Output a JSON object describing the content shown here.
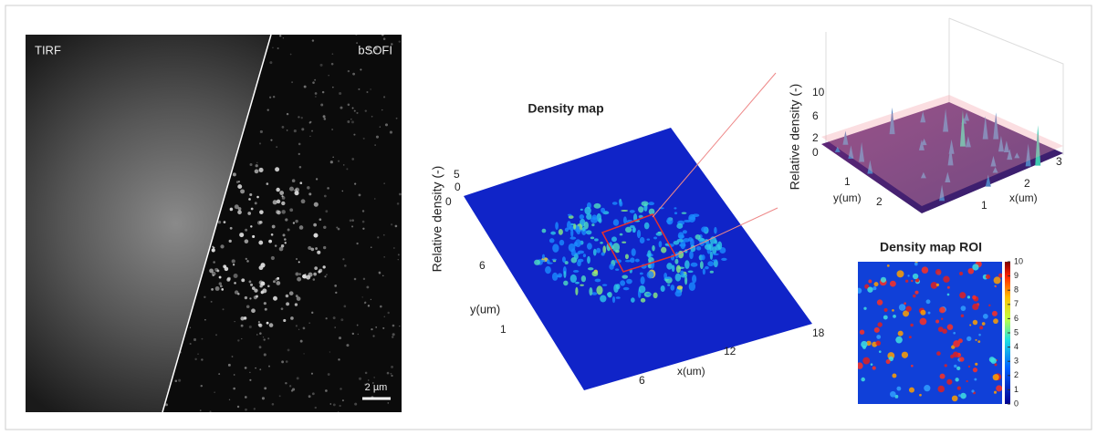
{
  "microscopy_panel": {
    "left_label": "TIRF",
    "right_label": "bSOFI",
    "scale_bar": "2 µm"
  },
  "density_map_panel": {
    "title": "Density map",
    "z_axis_label": "Relative density (-)",
    "z_ticks": [
      "5",
      "0"
    ],
    "corner_tick": "0",
    "y_axis_label": "y(um)",
    "y_ticks": [
      "6",
      "1"
    ],
    "x_axis_label": "x(um)",
    "x_ticks": [
      "6",
      "12",
      "18"
    ]
  },
  "surface_panel": {
    "z_axis_label": "Relative density (-)",
    "z_ticks": [
      "10",
      "6",
      "2",
      "0"
    ],
    "y_axis_label": "y(um)",
    "y_ticks": [
      "1",
      "2"
    ],
    "x_axis_label": "x(um)",
    "x_ticks": [
      "1",
      "2",
      "3"
    ]
  },
  "roi_panel": {
    "title": "Density map ROI",
    "colorbar_ticks": [
      10,
      9,
      8,
      7,
      6,
      5,
      4,
      3,
      2,
      1,
      0
    ]
  }
}
